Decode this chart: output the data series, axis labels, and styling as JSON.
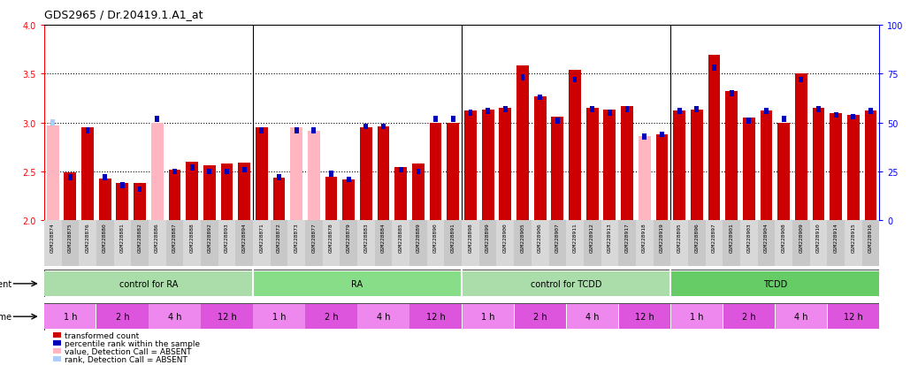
{
  "title": "GDS2965 / Dr.20419.1.A1_at",
  "samples": [
    "GSM228874",
    "GSM228875",
    "GSM228876",
    "GSM228880",
    "GSM228881",
    "GSM228882",
    "GSM228886",
    "GSM228887",
    "GSM228888",
    "GSM228892",
    "GSM228893",
    "GSM228894",
    "GSM228871",
    "GSM228872",
    "GSM228873",
    "GSM228877",
    "GSM228878",
    "GSM228879",
    "GSM228883",
    "GSM228884",
    "GSM228885",
    "GSM228889",
    "GSM228890",
    "GSM228891",
    "GSM228898",
    "GSM228899",
    "GSM228900",
    "GSM228905",
    "GSM228906",
    "GSM228907",
    "GSM228911",
    "GSM228912",
    "GSM228913",
    "GSM228917",
    "GSM228918",
    "GSM228919",
    "GSM228895",
    "GSM228896",
    "GSM228897",
    "GSM228901",
    "GSM228903",
    "GSM228904",
    "GSM228908",
    "GSM228909",
    "GSM228910",
    "GSM228914",
    "GSM228915",
    "GSM228916"
  ],
  "transformed_count": [
    2.97,
    2.49,
    2.95,
    2.43,
    2.38,
    2.38,
    3.0,
    2.52,
    2.6,
    2.56,
    2.58,
    2.59,
    2.95,
    2.44,
    2.95,
    2.92,
    2.45,
    2.42,
    2.95,
    2.96,
    2.55,
    2.58,
    3.0,
    3.0,
    3.12,
    3.13,
    3.15,
    3.58,
    3.27,
    3.06,
    3.54,
    3.15,
    3.13,
    3.17,
    2.86,
    2.88,
    3.12,
    3.13,
    3.69,
    3.32,
    3.05,
    3.12,
    3.0,
    3.5,
    3.15,
    3.1,
    3.08,
    3.12
  ],
  "percentile_rank": [
    50,
    22,
    46,
    22,
    18,
    16,
    52,
    25,
    27,
    25,
    25,
    26,
    46,
    22,
    46,
    46,
    24,
    21,
    48,
    48,
    26,
    25,
    52,
    52,
    55,
    56,
    57,
    73,
    63,
    51,
    72,
    57,
    55,
    57,
    43,
    44,
    56,
    57,
    78,
    65,
    51,
    56,
    52,
    72,
    57,
    54,
    53,
    56
  ],
  "absent_value": [
    true,
    false,
    false,
    false,
    false,
    false,
    true,
    false,
    false,
    false,
    false,
    false,
    false,
    false,
    true,
    true,
    false,
    false,
    false,
    false,
    false,
    false,
    false,
    false,
    false,
    false,
    false,
    false,
    false,
    false,
    false,
    false,
    false,
    false,
    true,
    false,
    false,
    false,
    false,
    false,
    false,
    false,
    false,
    false,
    false,
    false,
    false,
    false
  ],
  "absent_rank": [
    true,
    false,
    false,
    false,
    false,
    false,
    false,
    false,
    false,
    false,
    false,
    false,
    false,
    false,
    false,
    false,
    false,
    false,
    false,
    false,
    false,
    false,
    false,
    false,
    false,
    false,
    false,
    false,
    false,
    false,
    false,
    false,
    false,
    false,
    false,
    false,
    false,
    false,
    false,
    false,
    false,
    false,
    false,
    false,
    false,
    false,
    false,
    false
  ],
  "agent_groups": [
    {
      "label": "control for RA",
      "start": 0,
      "end": 11,
      "color": "#aaddaa"
    },
    {
      "label": "RA",
      "start": 12,
      "end": 23,
      "color": "#88dd88"
    },
    {
      "label": "control for TCDD",
      "start": 24,
      "end": 35,
      "color": "#aaddaa"
    },
    {
      "label": "TCDD",
      "start": 36,
      "end": 47,
      "color": "#66cc66"
    }
  ],
  "time_groups": [
    {
      "label": "1 h",
      "start": 0,
      "end": 2,
      "color": "#ee88ee"
    },
    {
      "label": "2 h",
      "start": 3,
      "end": 5,
      "color": "#dd55dd"
    },
    {
      "label": "4 h",
      "start": 6,
      "end": 8,
      "color": "#ee88ee"
    },
    {
      "label": "12 h",
      "start": 9,
      "end": 11,
      "color": "#dd55dd"
    },
    {
      "label": "1 h",
      "start": 12,
      "end": 14,
      "color": "#ee88ee"
    },
    {
      "label": "2 h",
      "start": 15,
      "end": 17,
      "color": "#dd55dd"
    },
    {
      "label": "4 h",
      "start": 18,
      "end": 20,
      "color": "#ee88ee"
    },
    {
      "label": "12 h",
      "start": 21,
      "end": 23,
      "color": "#dd55dd"
    },
    {
      "label": "1 h",
      "start": 24,
      "end": 26,
      "color": "#ee88ee"
    },
    {
      "label": "2 h",
      "start": 27,
      "end": 29,
      "color": "#dd55dd"
    },
    {
      "label": "4 h",
      "start": 30,
      "end": 32,
      "color": "#ee88ee"
    },
    {
      "label": "12 h",
      "start": 33,
      "end": 35,
      "color": "#dd55dd"
    },
    {
      "label": "1 h",
      "start": 36,
      "end": 38,
      "color": "#ee88ee"
    },
    {
      "label": "2 h",
      "start": 39,
      "end": 41,
      "color": "#dd55dd"
    },
    {
      "label": "4 h",
      "start": 42,
      "end": 44,
      "color": "#ee88ee"
    },
    {
      "label": "12 h",
      "start": 45,
      "end": 47,
      "color": "#dd55dd"
    }
  ],
  "ylim": [
    2.0,
    4.0
  ],
  "yticks_left": [
    2.0,
    2.5,
    3.0,
    3.5,
    4.0
  ],
  "yticks_right": [
    0,
    25,
    50,
    75,
    100
  ],
  "bar_color": "#CC0000",
  "bar_absent_color": "#FFB6C1",
  "rank_color": "#0000BB",
  "rank_absent_color": "#AACCFF",
  "bg_color": "#FFFFFF",
  "dotted_lines": [
    2.5,
    3.0,
    3.5
  ],
  "baseline": 2.0,
  "xticklabel_bg": "#DDDDDD"
}
